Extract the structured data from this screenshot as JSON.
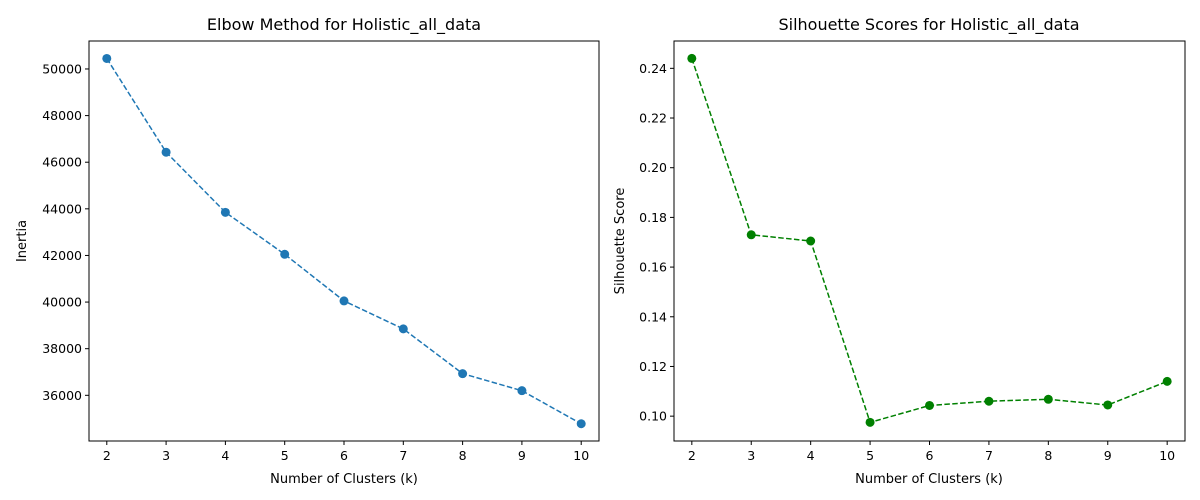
{
  "chart_data": [
    {
      "type": "line",
      "title": "Elbow Method for Holistic_all_data",
      "xlabel": "Number of Clusters (k)",
      "ylabel": "Inertia",
      "x": [
        2,
        3,
        4,
        5,
        6,
        7,
        8,
        9,
        10
      ],
      "series": [
        {
          "values": [
            50450,
            46430,
            43850,
            42050,
            40050,
            38850,
            36930,
            36200,
            34780
          ]
        }
      ],
      "xlim": [
        1.7,
        10.3
      ],
      "ylim": [
        34040,
        51200
      ],
      "xticks": [
        2,
        3,
        4,
        5,
        6,
        7,
        8,
        9,
        10
      ],
      "yticks": [
        36000,
        38000,
        40000,
        42000,
        44000,
        46000,
        48000,
        50000
      ],
      "color": "#1f77b4",
      "line_style": "dashed",
      "marker": "circle",
      "grid": false
    },
    {
      "type": "line",
      "title": "Silhouette Scores for Holistic_all_data",
      "xlabel": "Number of Clusters (k)",
      "ylabel": "Silhouette Score",
      "x": [
        2,
        3,
        4,
        5,
        6,
        7,
        8,
        9,
        10
      ],
      "series": [
        {
          "values": [
            0.244,
            0.173,
            0.1705,
            0.0975,
            0.1043,
            0.106,
            0.1068,
            0.1045,
            0.114
          ]
        }
      ],
      "xlim": [
        1.7,
        10.3
      ],
      "ylim": [
        0.09,
        0.251
      ],
      "xticks": [
        2,
        3,
        4,
        5,
        6,
        7,
        8,
        9,
        10
      ],
      "yticks": [
        0.1,
        0.12,
        0.14,
        0.16,
        0.18,
        0.2,
        0.22,
        0.24
      ],
      "ytick_decimals": 2,
      "color": "#008000",
      "line_style": "dashed",
      "marker": "circle",
      "grid": false
    }
  ]
}
